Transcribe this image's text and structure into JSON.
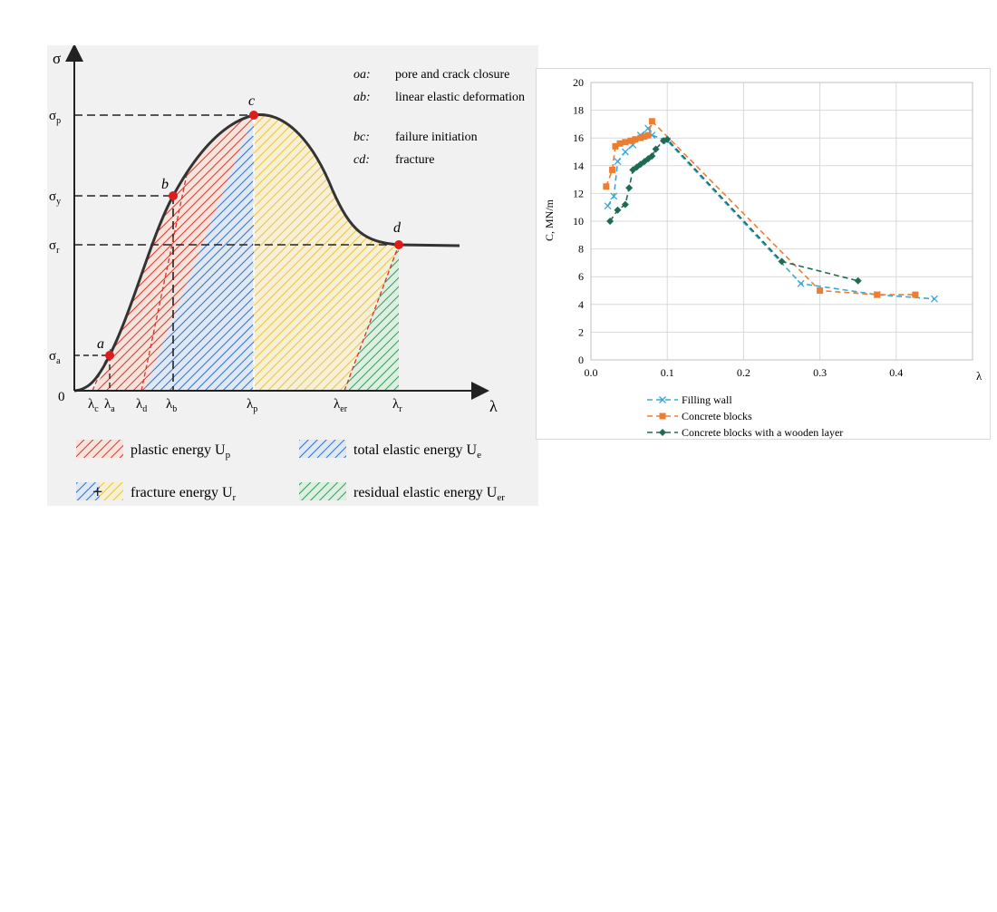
{
  "chart_data": [
    {
      "type": "area",
      "x_axis_symbol": "λ",
      "y_axis_symbol": "σ",
      "origin_label": "0",
      "y_tick_labels": [
        {
          "base": "σ",
          "sub": "p"
        },
        {
          "base": "σ",
          "sub": "y"
        },
        {
          "base": "σ",
          "sub": "r"
        },
        {
          "base": "σ",
          "sub": "a"
        }
      ],
      "x_tick_labels": [
        {
          "base": "λ",
          "sub": "c"
        },
        {
          "base": "λ",
          "sub": "a"
        },
        {
          "base": "λ",
          "sub": "d"
        },
        {
          "base": "λ",
          "sub": "b"
        },
        {
          "base": "λ",
          "sub": "p"
        },
        {
          "base": "λ",
          "sub": "er"
        },
        {
          "base": "λ",
          "sub": "r"
        }
      ],
      "points": [
        {
          "name": "a",
          "x": "λa",
          "y": "σa"
        },
        {
          "name": "b",
          "x": "λb",
          "y": "σy"
        },
        {
          "name": "c",
          "x": "λp",
          "y": "σp"
        },
        {
          "name": "d",
          "x": "λr",
          "y": "σr"
        }
      ],
      "stage_notes": [
        {
          "key": "oa:",
          "text": "pore and crack closure"
        },
        {
          "key": "ab:",
          "text": "linear elastic deformation"
        },
        {
          "key": "bc:",
          "text": "failure initiation"
        },
        {
          "key": "cd:",
          "text": "fracture"
        }
      ],
      "legend": [
        {
          "label": "plastic energy U",
          "sub": "p",
          "color": "#d9342b"
        },
        {
          "label": "total elastic energy U",
          "sub": "e",
          "color": "#2f6fc2"
        },
        {
          "label": "fracture energy U",
          "sub": "r",
          "color": "#e8c33a"
        },
        {
          "label": "residual elastic energy U",
          "sub": "er",
          "color": "#2f9d55"
        }
      ]
    },
    {
      "type": "line",
      "ylabel": "C, MN/m",
      "xlabel": "λ",
      "xlim": [
        0,
        0.5
      ],
      "ylim": [
        0,
        20
      ],
      "x_ticks": [
        "0.0",
        "0.1",
        "0.2",
        "0.3",
        "0.4"
      ],
      "y_ticks": [
        "0",
        "2",
        "4",
        "6",
        "8",
        "10",
        "12",
        "14",
        "16",
        "18",
        "20"
      ],
      "grid": true,
      "legend_position": "bottom",
      "series": [
        {
          "name": "Filling wall",
          "color": "#3aa7d9",
          "marker": "x",
          "x": [
            0.022,
            0.03,
            0.035,
            0.045,
            0.055,
            0.065,
            0.075,
            0.08,
            0.1,
            0.275,
            0.375,
            0.45
          ],
          "y": [
            11.1,
            11.8,
            14.3,
            15.0,
            15.5,
            16.2,
            16.7,
            16.2,
            15.8,
            5.5,
            4.7,
            4.4
          ]
        },
        {
          "name": "Concrete blocks",
          "color": "#ed7d31",
          "marker": "square",
          "x": [
            0.02,
            0.028,
            0.032,
            0.038,
            0.045,
            0.052,
            0.058,
            0.065,
            0.07,
            0.075,
            0.08,
            0.3,
            0.375,
            0.425
          ],
          "y": [
            12.5,
            13.7,
            15.4,
            15.6,
            15.7,
            15.8,
            15.9,
            16.0,
            16.1,
            16.2,
            17.2,
            5.0,
            4.7,
            4.7
          ]
        },
        {
          "name": "Concrete blocks with a wooden layer",
          "color": "#1e6b55",
          "marker": "diamond",
          "x": [
            0.025,
            0.035,
            0.045,
            0.05,
            0.055,
            0.06,
            0.065,
            0.07,
            0.075,
            0.08,
            0.085,
            0.095,
            0.1,
            0.25,
            0.35
          ],
          "y": [
            10.0,
            10.8,
            11.2,
            12.4,
            13.7,
            13.9,
            14.1,
            14.3,
            14.5,
            14.7,
            15.2,
            15.8,
            15.9,
            7.1,
            5.7
          ]
        }
      ]
    }
  ]
}
